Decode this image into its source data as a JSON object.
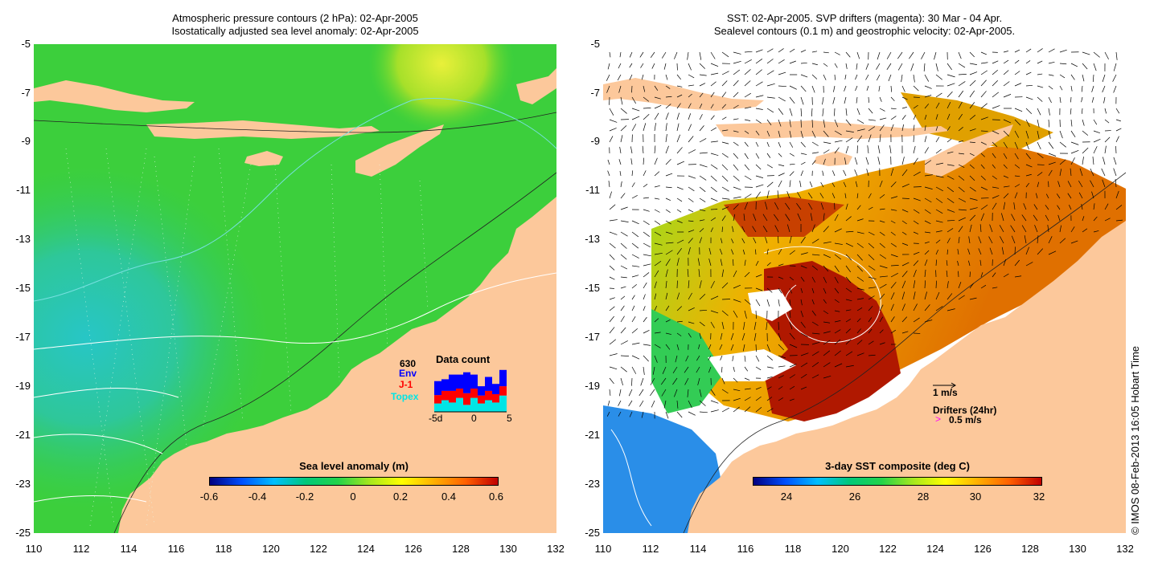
{
  "left_panel": {
    "title_line1": "Atmospheric pressure contours (2 hPa): 02-Apr-2005",
    "title_line2": "Isostatically adjusted sea level anomaly: 02-Apr-2005",
    "colorbar_label": "Sea level anomaly (m)",
    "colorbar_ticks": [
      "-0.6",
      "-0.4",
      "-0.2",
      "0",
      "0.2",
      "0.4",
      "0.6"
    ],
    "colorbar_stops": [
      "#000080",
      "#0050ff",
      "#00bfff",
      "#00c87a",
      "#22d34a",
      "#a6e81e",
      "#ffff00",
      "#ffb000",
      "#ff6000",
      "#c00000"
    ],
    "data_count": {
      "title": "Data count",
      "total": "630",
      "legend": [
        {
          "label": "Env",
          "color": "#0000ff"
        },
        {
          "label": "J-1",
          "color": "#ff0000"
        },
        {
          "label": "Topex",
          "color": "#00e5e5"
        }
      ],
      "x_ticks": [
        "-5d",
        "0",
        "5"
      ],
      "bars": [
        {
          "topex": 0.18,
          "j1": 0.18,
          "env": 0.3
        },
        {
          "topex": 0.25,
          "j1": 0.2,
          "env": 0.25
        },
        {
          "topex": 0.2,
          "j1": 0.25,
          "env": 0.35
        },
        {
          "topex": 0.3,
          "j1": 0.2,
          "env": 0.3
        },
        {
          "topex": 0.15,
          "j1": 0.25,
          "env": 0.45
        },
        {
          "topex": 0.3,
          "j1": 0.2,
          "env": 0.3
        },
        {
          "topex": 0.18,
          "j1": 0.17,
          "env": 0.2
        },
        {
          "topex": 0.25,
          "j1": 0.2,
          "env": 0.3
        },
        {
          "topex": 0.2,
          "j1": 0.18,
          "env": 0.22
        },
        {
          "topex": 0.35,
          "j1": 0.2,
          "env": 0.35
        }
      ]
    }
  },
  "right_panel": {
    "title_line1": "SST: 02-Apr-2005. SVP drifters (magenta): 30 Mar - 04 Apr.",
    "title_line2": "Sealevel contours (0.1 m) and geostrophic velocity: 02-Apr-2005.",
    "colorbar_label": "3-day SST composite (deg C)",
    "colorbar_ticks": [
      "24",
      "26",
      "28",
      "30",
      "32"
    ],
    "colorbar_stops": [
      "#000080",
      "#0050ff",
      "#00bfff",
      "#00c87a",
      "#22d34a",
      "#a6e81e",
      "#ffff00",
      "#ffb000",
      "#ff6000",
      "#c00000"
    ],
    "velocity_scale_label": "1 m/s",
    "drifters_label": "Drifters (24hr)",
    "drifters_scale_symbol": ">",
    "drifters_scale_label": "0.5 m/s"
  },
  "axes": {
    "lat_ticks": [
      "-5",
      "-7",
      "-9",
      "-11",
      "-13",
      "-15",
      "-17",
      "-19",
      "-21",
      "-23",
      "-25"
    ],
    "lon_ticks": [
      "110",
      "112",
      "114",
      "116",
      "118",
      "120",
      "122",
      "124",
      "126",
      "128",
      "130",
      "132"
    ]
  },
  "colors": {
    "land": "#fcc89b",
    "ocean_green": "#33cc33",
    "missing": "#ffffff"
  },
  "copyright": "© IMOS 08-Feb-2013 16:05 Hobart Time"
}
